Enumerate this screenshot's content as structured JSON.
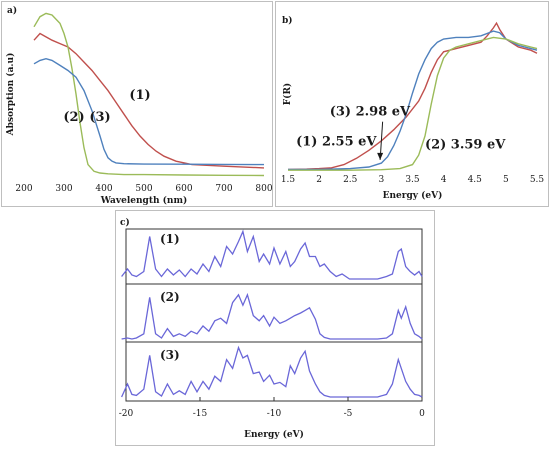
{
  "chart_data": [
    {
      "panel": "a)",
      "type": "line",
      "title": "",
      "xlabel": "Wavelength (nm)",
      "ylabel": "Absorption (a.u)",
      "xlim": [
        200,
        800
      ],
      "xticks": [
        "200",
        "300",
        "400",
        "500",
        "600",
        "700",
        "800"
      ],
      "ylim": [
        0,
        1
      ],
      "grid": false,
      "legend": "none",
      "annotations": [
        {
          "text": "(1)",
          "x": 490,
          "y": 0.47
        },
        {
          "text": "(2)",
          "x": 325,
          "y": 0.34
        },
        {
          "text": "(3)",
          "x": 390,
          "y": 0.34
        }
      ],
      "series": [
        {
          "color": "#c0504d",
          "x": [
            225,
            240,
            255,
            270,
            290,
            310,
            330,
            350,
            370,
            390,
            410,
            430,
            450,
            470,
            490,
            510,
            530,
            550,
            580,
            620,
            700,
            800
          ],
          "y": [
            0.82,
            0.86,
            0.84,
            0.82,
            0.8,
            0.78,
            0.74,
            0.69,
            0.64,
            0.58,
            0.52,
            0.45,
            0.38,
            0.31,
            0.25,
            0.2,
            0.16,
            0.13,
            0.1,
            0.08,
            0.07,
            0.06
          ]
        },
        {
          "color": "#9bbb59",
          "x": [
            225,
            240,
            255,
            270,
            290,
            300,
            310,
            320,
            330,
            340,
            350,
            360,
            375,
            390,
            410,
            450,
            500,
            600,
            700,
            800
          ],
          "y": [
            0.9,
            0.96,
            0.98,
            0.97,
            0.92,
            0.86,
            0.78,
            0.65,
            0.5,
            0.33,
            0.18,
            0.08,
            0.04,
            0.03,
            0.025,
            0.02,
            0.02,
            0.018,
            0.016,
            0.015
          ]
        },
        {
          "color": "#4f81bd",
          "x": [
            225,
            240,
            255,
            270,
            290,
            310,
            330,
            350,
            370,
            390,
            400,
            410,
            420,
            430,
            450,
            500,
            600,
            700,
            800
          ],
          "y": [
            0.68,
            0.7,
            0.71,
            0.7,
            0.67,
            0.64,
            0.6,
            0.52,
            0.4,
            0.25,
            0.17,
            0.12,
            0.1,
            0.09,
            0.085,
            0.083,
            0.082,
            0.081,
            0.08
          ]
        }
      ]
    },
    {
      "panel": "b)",
      "type": "line",
      "title": "",
      "xlabel": "Energy (eV)",
      "ylabel": "F(R)",
      "xlim": [
        1.5,
        5.5
      ],
      "xticks": [
        "1.5",
        "2",
        "2.5",
        "3",
        "3.5",
        "4",
        "4.5",
        "5",
        "5.5"
      ],
      "ylim": [
        0,
        1
      ],
      "grid": false,
      "legend": "none",
      "annotations": [
        {
          "text": "(1) 2.55 eV",
          "x": 1.63,
          "y": 0.16
        },
        {
          "text": "(3) 2.98 eV",
          "x": 2.17,
          "y": 0.35
        },
        {
          "text": "(2) 3.59 eV",
          "x": 3.7,
          "y": 0.14
        }
      ],
      "series": [
        {
          "color": "#c0504d",
          "x": [
            1.5,
            1.8,
            2.0,
            2.2,
            2.4,
            2.6,
            2.8,
            3.0,
            3.2,
            3.4,
            3.6,
            3.7,
            3.8,
            3.9,
            4.0,
            4.2,
            4.4,
            4.6,
            4.7,
            4.8,
            4.85,
            4.9,
            5.0,
            5.2,
            5.4,
            5.5
          ],
          "y": [
            0.01,
            0.012,
            0.015,
            0.02,
            0.04,
            0.08,
            0.13,
            0.19,
            0.26,
            0.34,
            0.44,
            0.52,
            0.62,
            0.7,
            0.75,
            0.77,
            0.79,
            0.81,
            0.85,
            0.9,
            0.93,
            0.89,
            0.83,
            0.78,
            0.76,
            0.74
          ]
        },
        {
          "color": "#4f81bd",
          "x": [
            1.5,
            2.0,
            2.5,
            2.8,
            3.0,
            3.1,
            3.2,
            3.3,
            3.4,
            3.5,
            3.6,
            3.7,
            3.8,
            3.9,
            4.0,
            4.2,
            4.4,
            4.6,
            4.8,
            4.9,
            5.0,
            5.2,
            5.4,
            5.5
          ],
          "y": [
            0.01,
            0.01,
            0.015,
            0.025,
            0.05,
            0.09,
            0.16,
            0.25,
            0.36,
            0.49,
            0.61,
            0.7,
            0.77,
            0.81,
            0.83,
            0.84,
            0.84,
            0.85,
            0.88,
            0.87,
            0.83,
            0.79,
            0.77,
            0.76
          ]
        },
        {
          "color": "#9bbb59",
          "x": [
            1.5,
            2.5,
            3.0,
            3.3,
            3.5,
            3.6,
            3.7,
            3.8,
            3.9,
            4.0,
            4.1,
            4.2,
            4.4,
            4.6,
            4.8,
            5.0,
            5.2,
            5.4,
            5.5
          ],
          "y": [
            0.005,
            0.005,
            0.008,
            0.015,
            0.04,
            0.1,
            0.22,
            0.42,
            0.6,
            0.71,
            0.76,
            0.78,
            0.8,
            0.82,
            0.84,
            0.83,
            0.8,
            0.78,
            0.77
          ]
        }
      ]
    },
    {
      "panel": "c)",
      "type": "line",
      "title": "",
      "xlabel": "Energy (eV)",
      "ylabel": "",
      "xlim": [
        -20,
        0
      ],
      "xticks": [
        "-20",
        "-15",
        "-10",
        "-5",
        "0"
      ],
      "grid": false,
      "legend": "none",
      "series": [
        {
          "name": "(1)",
          "color": "#6a67d8",
          "x": [
            -20.3,
            -19.9,
            -19.6,
            -19.3,
            -18.8,
            -18.4,
            -18.0,
            -17.6,
            -17.2,
            -16.8,
            -16.4,
            -16.0,
            -15.6,
            -15.2,
            -14.8,
            -14.4,
            -14.0,
            -13.6,
            -13.2,
            -12.8,
            -12.4,
            -12.1,
            -11.8,
            -11.4,
            -11.0,
            -10.7,
            -10.3,
            -10.0,
            -9.6,
            -9.2,
            -8.9,
            -8.6,
            -8.2,
            -7.9,
            -7.6,
            -7.2,
            -6.9,
            -6.6,
            -6.2,
            -5.8,
            -5.4,
            -4.9,
            -3.0,
            -2.4,
            -2.0,
            -1.6,
            -1.4,
            -1.1,
            -0.8,
            -0.5,
            -0.2,
            0.0
          ],
          "y": [
            0.05,
            0.2,
            0.08,
            0.05,
            0.15,
            0.85,
            0.2,
            0.05,
            0.2,
            0.08,
            0.18,
            0.05,
            0.2,
            0.1,
            0.3,
            0.15,
            0.45,
            0.25,
            0.65,
            0.5,
            0.75,
            0.95,
            0.55,
            0.85,
            0.35,
            0.5,
            0.3,
            0.62,
            0.3,
            0.55,
            0.25,
            0.35,
            0.6,
            0.72,
            0.45,
            0.45,
            0.25,
            0.3,
            0.15,
            0.05,
            0.1,
            0.0,
            0.0,
            0.05,
            0.1,
            0.55,
            0.6,
            0.25,
            0.15,
            0.08,
            0.15,
            0.05
          ]
        },
        {
          "name": "(2)",
          "color": "#6a67d8",
          "x": [
            -20.3,
            -19.9,
            -19.6,
            -19.3,
            -18.8,
            -18.4,
            -18.0,
            -17.6,
            -17.2,
            -16.8,
            -16.4,
            -16.0,
            -15.6,
            -15.2,
            -14.8,
            -14.4,
            -14.0,
            -13.6,
            -13.2,
            -12.8,
            -12.4,
            -12.1,
            -11.8,
            -11.4,
            -11.0,
            -10.7,
            -10.3,
            -10.0,
            -9.6,
            -9.2,
            -8.9,
            -8.6,
            -8.2,
            -7.9,
            -7.6,
            -7.2,
            -6.9,
            -6.6,
            -6.2,
            -5.8,
            -5.4,
            -4.9,
            -3.0,
            -2.4,
            -2.0,
            -1.6,
            -1.4,
            -1.1,
            -0.8,
            -0.5,
            -0.2,
            0.0
          ],
          "y": [
            0.0,
            0.02,
            0.0,
            0.02,
            0.1,
            0.8,
            0.1,
            0.02,
            0.2,
            0.05,
            0.1,
            0.05,
            0.15,
            0.1,
            0.25,
            0.15,
            0.35,
            0.4,
            0.3,
            0.7,
            0.85,
            0.65,
            0.85,
            0.45,
            0.35,
            0.45,
            0.25,
            0.42,
            0.3,
            0.35,
            0.4,
            0.45,
            0.5,
            0.55,
            0.6,
            0.38,
            0.1,
            0.03,
            0.0,
            0.0,
            0.0,
            0.0,
            0.0,
            0.02,
            0.1,
            0.55,
            0.4,
            0.62,
            0.3,
            0.1,
            0.05,
            0.0
          ]
        },
        {
          "name": "(3)",
          "color": "#6a67d8",
          "x": [
            -20.3,
            -19.9,
            -19.6,
            -19.3,
            -18.8,
            -18.4,
            -18.0,
            -17.6,
            -17.2,
            -16.8,
            -16.4,
            -16.0,
            -15.6,
            -15.2,
            -14.8,
            -14.4,
            -14.0,
            -13.6,
            -13.2,
            -12.8,
            -12.4,
            -12.1,
            -11.8,
            -11.4,
            -11.0,
            -10.7,
            -10.3,
            -10.0,
            -9.6,
            -9.2,
            -8.9,
            -8.6,
            -8.2,
            -7.9,
            -7.6,
            -7.2,
            -6.9,
            -6.6,
            -6.2,
            -5.8,
            -5.4,
            -4.9,
            -3.0,
            -2.4,
            -2.0,
            -1.6,
            -1.4,
            -1.1,
            -0.8,
            -0.5,
            -0.2,
            0.0
          ],
          "y": [
            0.0,
            0.25,
            0.05,
            0.03,
            0.15,
            0.8,
            0.1,
            0.02,
            0.25,
            0.05,
            0.12,
            0.05,
            0.3,
            0.1,
            0.3,
            0.15,
            0.4,
            0.3,
            0.72,
            0.55,
            0.95,
            0.75,
            0.8,
            0.45,
            0.48,
            0.3,
            0.42,
            0.25,
            0.28,
            0.2,
            0.6,
            0.45,
            0.75,
            0.88,
            0.5,
            0.25,
            0.1,
            0.03,
            0.0,
            0.0,
            0.0,
            0.0,
            0.0,
            0.05,
            0.25,
            0.72,
            0.55,
            0.3,
            0.15,
            0.05,
            0.03,
            0.0
          ]
        }
      ]
    }
  ]
}
